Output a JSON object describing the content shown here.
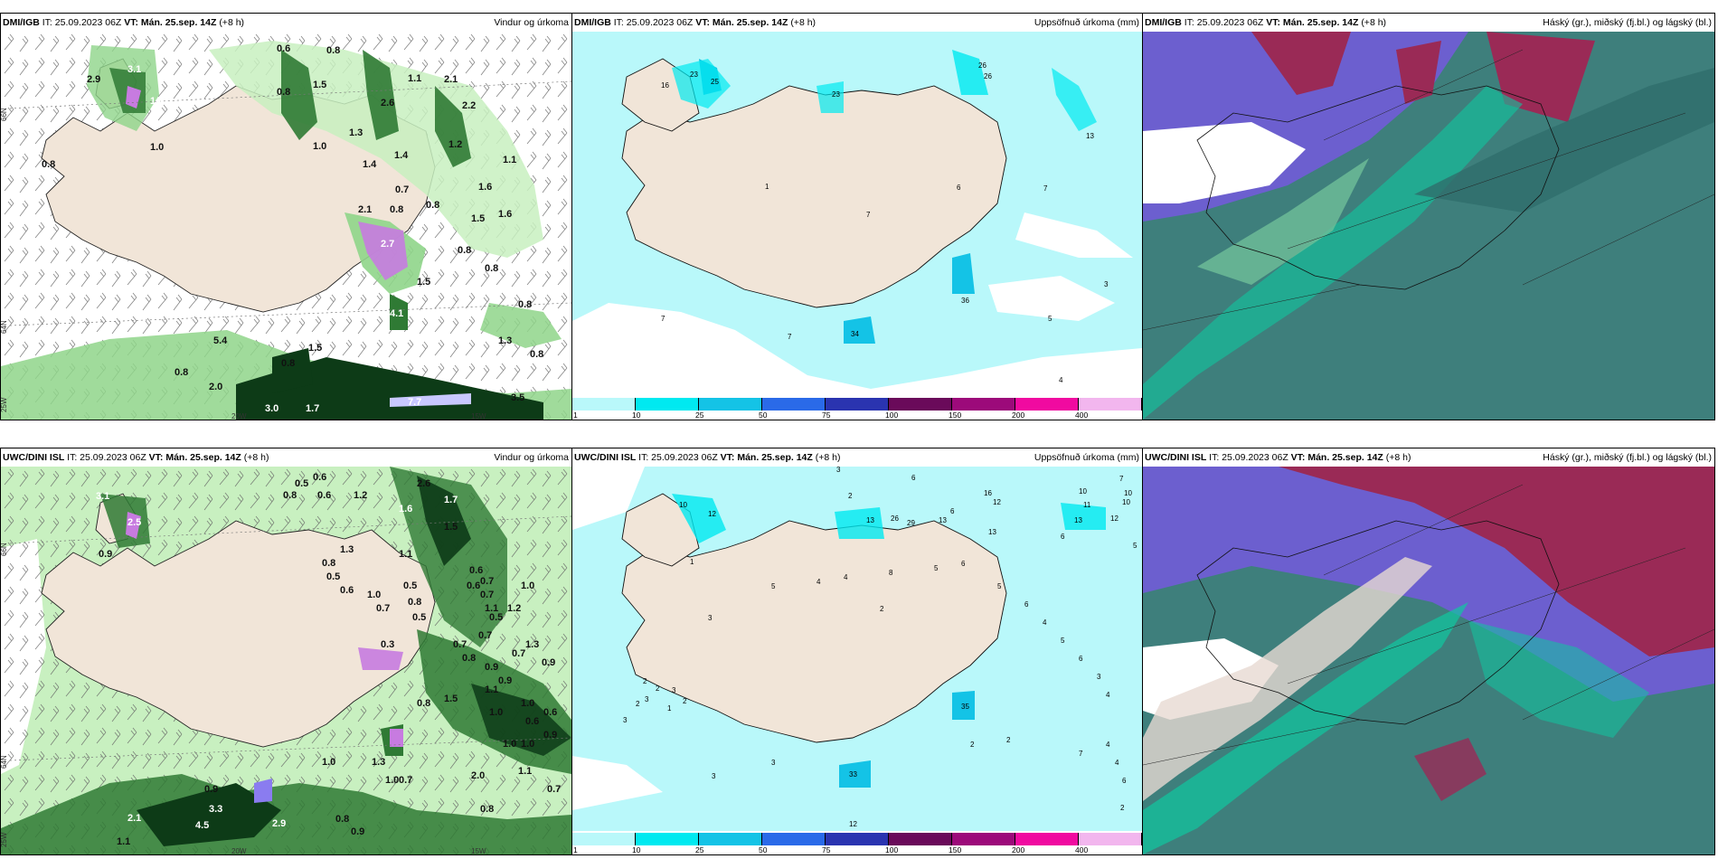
{
  "panels": {
    "tl": {
      "left": "DMI/IGB",
      "it": "IT: 25.09.2023 06Z",
      "vt": "VT: Mán. 25.sep. 14Z",
      "lead": "(+8 h)",
      "right": "Vindur og úrkoma"
    },
    "tm": {
      "left": "DMI/IGB",
      "it": "IT: 25.09.2023 06Z",
      "vt": "VT: Mán. 25.sep. 14Z",
      "lead": "(+8 h)",
      "right": "Uppsöfnuð úrkoma (mm)"
    },
    "tr": {
      "left": "DMI/IGB",
      "it": "IT: 25.09.2023 06Z",
      "vt": "VT: Mán. 25.sep. 14Z",
      "lead": "(+8 h)",
      "right": "Háský (gr.), miðský (fj.bl.) og lágský (bl.)"
    },
    "bl": {
      "left": "UWC/DINI ISL",
      "it": "IT: 25.09.2023 06Z",
      "vt": "VT: Mán. 25.sep. 14Z",
      "lead": "(+8 h)",
      "right": "Vindur og úrkoma"
    },
    "bm": {
      "left": "UWC/DINI ISL",
      "it": "IT: 25.09.2023 06Z",
      "vt": "VT: Mán. 25.sep. 14Z",
      "lead": "(+8 h)",
      "right": "Uppsöfnuð úrkoma (mm)"
    },
    "br": {
      "left": "UWC/DINI ISL",
      "it": "IT: 25.09.2023 06Z",
      "vt": "VT: Mán. 25.sep. 14Z",
      "lead": "(+8 h)",
      "right": "Háský (gr.), miðský (fj.bl.) og lágský (bl.)"
    }
  },
  "axis_labels": {
    "lat66": "66N",
    "lat64": "64N",
    "lon25": "25W",
    "lon20": "20W",
    "lon15": "15W"
  },
  "colorbar": {
    "ticks": [
      "1",
      "10",
      "25",
      "50",
      "75",
      "100",
      "150",
      "200",
      "400"
    ],
    "colors": [
      "#b9f8fa",
      "#00e9f0",
      "#14c3e6",
      "#2a6ae8",
      "#2a34b0",
      "#6a0a5a",
      "#9c0a7a",
      "#f00aa0",
      "#f2b6ee"
    ]
  },
  "colors": {
    "land": "#f1e5d8",
    "sea": "#ffffff",
    "precip_light": "#c8f0c0",
    "precip_mid": "#8fd58a",
    "precip_heavy": "#2f7a34",
    "precip_vheavy": "#0d3b17",
    "precip_extreme": "#c77be0",
    "acc_light": "#b9f8fa",
    "acc_mid": "#00e9f0",
    "cloud_high": "#3e7f7c",
    "cloud_mid": "#6c5fcf",
    "cloud_low": "#10c7a0",
    "cloud_magenta": "#9a2a56"
  },
  "wind_precip_tl": [
    "0.6",
    "0.8",
    "3.1",
    "1.6",
    "0.8",
    "1.0",
    "2.9",
    "1.5",
    "2.6",
    "2.2",
    "1.0",
    "1.3",
    "1.4",
    "1.2",
    "1.4",
    "1.1",
    "2.1",
    "0.7",
    "1.6",
    "0.8",
    "0.8",
    "1.1",
    "2.1",
    "1.6",
    "1.5",
    "2.7",
    "0.8",
    "0.8",
    "1.5",
    "4.1",
    "0.8",
    "1.3",
    "0.8",
    "1.5",
    "2.0",
    "0.8",
    "0.8",
    "3.0",
    "1.7",
    "7.7",
    "3.5",
    "0.8",
    "5.4"
  ],
  "acc_precip_tm": [
    "16",
    "25",
    "23",
    "26",
    "23",
    "13",
    "1",
    "7",
    "6",
    "7",
    "3",
    "5",
    "4",
    "7",
    "7",
    "36",
    "34",
    "26"
  ],
  "wind_precip_bl": [
    "0.5",
    "0.6",
    "0.6",
    "0.8",
    "1.2",
    "2.6",
    "0.9",
    "3.1",
    "2.5",
    "0.8",
    "1.3",
    "1.1",
    "1.6",
    "1.7",
    "1.5",
    "0.5",
    "0.6",
    "1.0",
    "0.7",
    "0.5",
    "0.7",
    "0.6",
    "0.8",
    "0.6",
    "0.7",
    "1.0",
    "1.1",
    "1.2",
    "0.3",
    "0.5",
    "0.7",
    "0.7",
    "0.5",
    "0.8",
    "0.9",
    "0.7",
    "0.9",
    "1.3",
    "0.9",
    "1.1",
    "0.8",
    "1.5",
    "1.0",
    "0.6",
    "1.0",
    "0.6",
    "0.9",
    "1.0",
    "1.0",
    "0.7",
    "2.0",
    "0.7",
    "0.8",
    "4.5",
    "3.3",
    "2.9",
    "0.8",
    "0.9",
    "1.0",
    "1.3",
    "1.1",
    "1.0",
    "2.1",
    "1.1",
    "0.9"
  ],
  "acc_precip_bm": [
    "3",
    "6",
    "10",
    "16",
    "12",
    "10",
    "2",
    "13",
    "26",
    "29",
    "12",
    "6",
    "10",
    "13",
    "11",
    "13",
    "12",
    "7",
    "10",
    "1",
    "1",
    "3",
    "2",
    "3",
    "2",
    "3",
    "2",
    "2",
    "2",
    "3",
    "5",
    "4",
    "4",
    "8",
    "5",
    "6",
    "5",
    "6",
    "4",
    "5",
    "6",
    "3",
    "4",
    "35",
    "33",
    "12",
    "2",
    "3",
    "2",
    "3",
    "7",
    "4",
    "6",
    "13",
    "6",
    "5",
    "4",
    "2"
  ]
}
